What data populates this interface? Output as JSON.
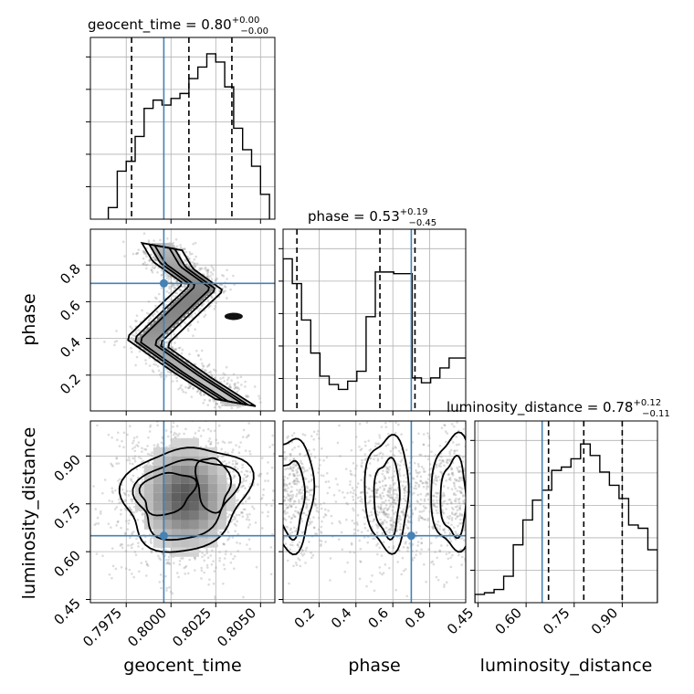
{
  "chart_data": {
    "type": "corner",
    "parameters": [
      "geocent_time",
      "phase",
      "luminosity_distance"
    ],
    "truths": {
      "geocent_time": 0.7996,
      "phase": 0.7,
      "luminosity_distance": 0.65
    },
    "titles": [
      {
        "label": "geocent_time = 0.80",
        "plus": "+0.00",
        "minus": "−0.00"
      },
      {
        "label": "phase = 0.53",
        "plus": "+0.19",
        "minus": "−0.45"
      },
      {
        "label": "luminosity_distance = 0.78",
        "plus": "+0.12",
        "minus": "−0.11"
      }
    ],
    "axes": {
      "geocent_time": {
        "range": [
          0.7955,
          0.8058
        ],
        "ticks": [
          0.7975,
          0.8,
          0.8025,
          0.805
        ],
        "tick_labels": [
          "0.7975",
          "0.8000",
          "0.8025",
          "0.8050"
        ]
      },
      "phase": {
        "range": [
          0.005,
          0.995
        ],
        "ticks": [
          0.2,
          0.4,
          0.6,
          0.8
        ],
        "tick_labels": [
          "0.2",
          "0.4",
          "0.6",
          "0.8"
        ]
      },
      "luminosity_distance": {
        "range": [
          0.44,
          1.01
        ],
        "ticks": [
          0.45,
          0.6,
          0.75,
          0.9
        ],
        "tick_labels": [
          "0.45",
          "0.60",
          "0.75",
          "0.90"
        ]
      }
    },
    "histograms": {
      "geocent_time": {
        "bins": [
          0.7965,
          0.797,
          0.7975,
          0.798,
          0.7985,
          0.799,
          0.7995,
          0.8,
          0.8005,
          0.801,
          0.8015,
          0.802,
          0.8025,
          0.803,
          0.8035,
          0.804,
          0.8045,
          0.805
        ],
        "counts": [
          0.07,
          0.29,
          0.35,
          0.5,
          0.67,
          0.72,
          0.69,
          0.73,
          0.76,
          0.85,
          0.92,
          1.0,
          0.95,
          0.8,
          0.55,
          0.42,
          0.32,
          0.15
        ],
        "quantiles": [
          0.7978,
          0.801,
          0.8034
        ]
      },
      "phase": {
        "bins": [
          0.005,
          0.055,
          0.105,
          0.155,
          0.205,
          0.255,
          0.305,
          0.355,
          0.405,
          0.455,
          0.505,
          0.555,
          0.605,
          0.655,
          0.705,
          0.755,
          0.805,
          0.855,
          0.905,
          0.955
        ],
        "counts": [
          0.92,
          0.77,
          0.55,
          0.35,
          0.21,
          0.16,
          0.13,
          0.18,
          0.24,
          0.57,
          0.84,
          0.84,
          0.83,
          0.83,
          0.2,
          0.17,
          0.2,
          0.26,
          0.32,
          0.32
        ],
        "quantiles": [
          0.08,
          0.53,
          0.72
        ]
      },
      "luminosity_distance": {
        "bins": [
          0.44,
          0.47,
          0.5,
          0.53,
          0.56,
          0.59,
          0.62,
          0.65,
          0.68,
          0.71,
          0.74,
          0.77,
          0.8,
          0.83,
          0.86,
          0.89,
          0.92,
          0.95,
          0.98
        ],
        "counts": [
          0.05,
          0.06,
          0.08,
          0.16,
          0.35,
          0.5,
          0.62,
          0.68,
          0.8,
          0.82,
          0.87,
          0.96,
          0.89,
          0.79,
          0.71,
          0.63,
          0.47,
          0.45,
          0.32
        ],
        "quantiles": [
          0.67,
          0.78,
          0.9
        ]
      }
    },
    "scatter_structure": {
      "phase_vs_geocent_time": {
        "mean_x": [
          0.7995,
          0.8001,
          0.8018,
          0.8005,
          0.7986,
          0.8012,
          0.8036
        ],
        "mean_y": [
          0.9,
          0.8,
          0.68,
          0.56,
          0.38,
          0.2,
          0.05
        ],
        "core": {
          "x": 0.8035,
          "y": 0.52
        }
      },
      "luminosity_distance_vs_geocent_time": {
        "center": [
          0.8008,
          0.77
        ],
        "spread": [
          0.0017,
          0.12
        ]
      },
      "luminosity_distance_vs_phase": {
        "modes": [
          0.05,
          0.57,
          0.93
        ],
        "center_y": 0.77,
        "spread_y": 0.12
      }
    }
  }
}
